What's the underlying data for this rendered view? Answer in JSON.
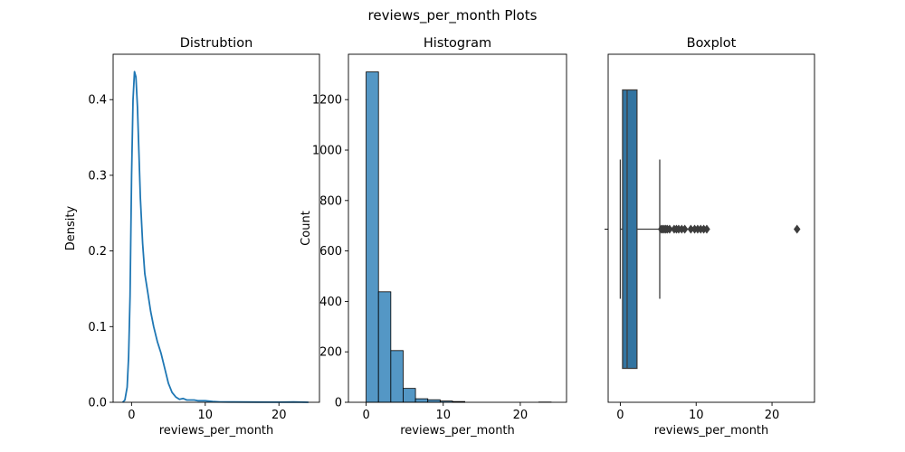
{
  "figure": {
    "suptitle": "reviews_per_month Plots"
  },
  "colors": {
    "series": "#1f77b4",
    "hist_fill": "#5497c5",
    "box_fill": "#3274a1",
    "box_line": "#3d3d3d",
    "axes": "#000000"
  },
  "chart_data": [
    {
      "type": "line",
      "title": "Distrubtion",
      "xlabel": "reviews_per_month",
      "ylabel": "Density",
      "xlim": [
        -2.5,
        25.5
      ],
      "ylim": [
        0,
        0.46
      ],
      "xticks": [
        0,
        10,
        20
      ],
      "yticks": [
        0.0,
        0.1,
        0.2,
        0.3,
        0.4
      ],
      "ytick_labels": [
        "0.0",
        "0.1",
        "0.2",
        "0.3",
        "0.4"
      ],
      "x": [
        -1.2,
        -0.9,
        -0.6,
        -0.4,
        -0.2,
        0.0,
        0.2,
        0.4,
        0.6,
        0.8,
        1.0,
        1.2,
        1.5,
        1.8,
        2.2,
        2.6,
        3.0,
        3.5,
        4.0,
        4.5,
        5.0,
        5.5,
        6.0,
        6.5,
        7.0,
        7.5,
        8.0,
        8.5,
        9.0,
        9.5,
        10.0,
        11.0,
        12.0,
        14.0,
        17.0,
        20.0,
        22.0,
        24.0
      ],
      "y": [
        0.0,
        0.003,
        0.02,
        0.06,
        0.14,
        0.3,
        0.4,
        0.437,
        0.43,
        0.39,
        0.33,
        0.27,
        0.21,
        0.17,
        0.145,
        0.12,
        0.1,
        0.08,
        0.065,
        0.045,
        0.025,
        0.013,
        0.007,
        0.004,
        0.005,
        0.003,
        0.003,
        0.003,
        0.002,
        0.002,
        0.002,
        0.001,
        0.0005,
        0.0003,
        0.0002,
        0.0001,
        0.0004,
        0.0
      ]
    },
    {
      "type": "bar",
      "title": "Histogram",
      "xlabel": "reviews_per_month",
      "ylabel": "Count",
      "xlim": [
        -2.3,
        26.0
      ],
      "ylim": [
        0,
        1380
      ],
      "xticks": [
        0,
        10,
        20
      ],
      "yticks": [
        0,
        200,
        400,
        600,
        800,
        1000,
        1200
      ],
      "bin_width": 1.6,
      "bin_starts": [
        0.0,
        1.6,
        3.2,
        4.8,
        6.4,
        8.0,
        9.6,
        11.2,
        12.8,
        14.4,
        16.0,
        17.6,
        19.2,
        20.8,
        22.4
      ],
      "values": [
        1310,
        438,
        205,
        55,
        14,
        10,
        5,
        3,
        0,
        0,
        0,
        0,
        0,
        0,
        1
      ]
    },
    {
      "type": "box",
      "title": "Boxplot",
      "xlabel": "reviews_per_month",
      "xlim": [
        -1.6,
        25.6
      ],
      "xticks": [
        0,
        10,
        20
      ],
      "whisker_low": 0.0,
      "q1": 0.3,
      "median": 0.9,
      "q3": 2.2,
      "whisker_high": 5.2,
      "outliers": [
        5.4,
        5.6,
        5.8,
        6.0,
        6.2,
        6.5,
        7.1,
        7.4,
        7.7,
        8.1,
        8.5,
        9.3,
        9.8,
        10.2,
        10.6,
        11.0,
        11.4,
        23.3
      ]
    }
  ]
}
